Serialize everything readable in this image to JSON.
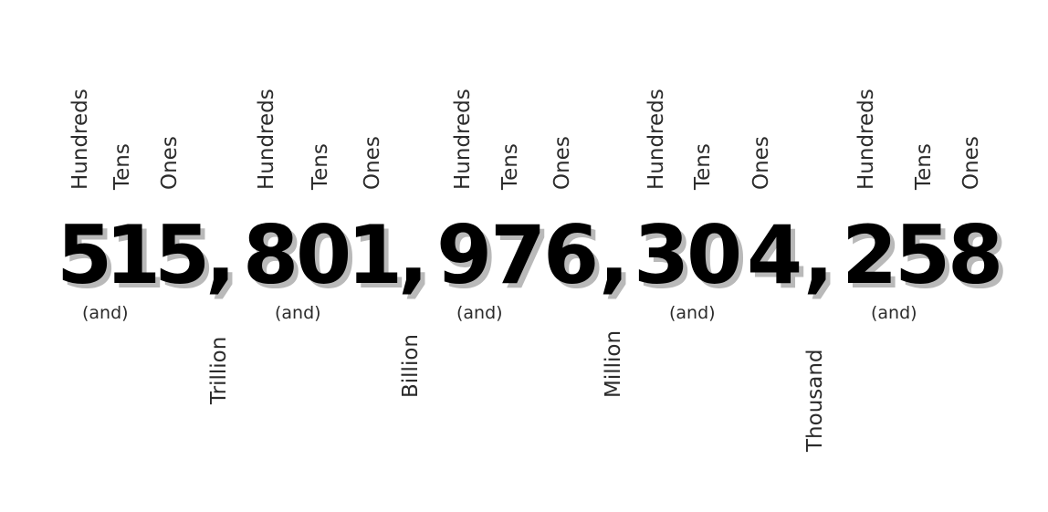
{
  "place_labels": {
    "hundreds": "Hundreds",
    "tens": "Tens",
    "ones": "Ones"
  },
  "number": {
    "digits": [
      "5",
      "1",
      "5",
      "8",
      "0",
      "1",
      "9",
      "7",
      "6",
      "3",
      "0",
      "4",
      "2",
      "5",
      "8"
    ],
    "separator": ","
  },
  "connector": "(and)",
  "period_names": [
    "Trillion",
    "Billion",
    "Million",
    "Thousand"
  ],
  "colors": {
    "digit": "#000000",
    "digit_shadow": "#b9b9b9",
    "label": "#2b2b2b",
    "background": "#ffffff"
  }
}
